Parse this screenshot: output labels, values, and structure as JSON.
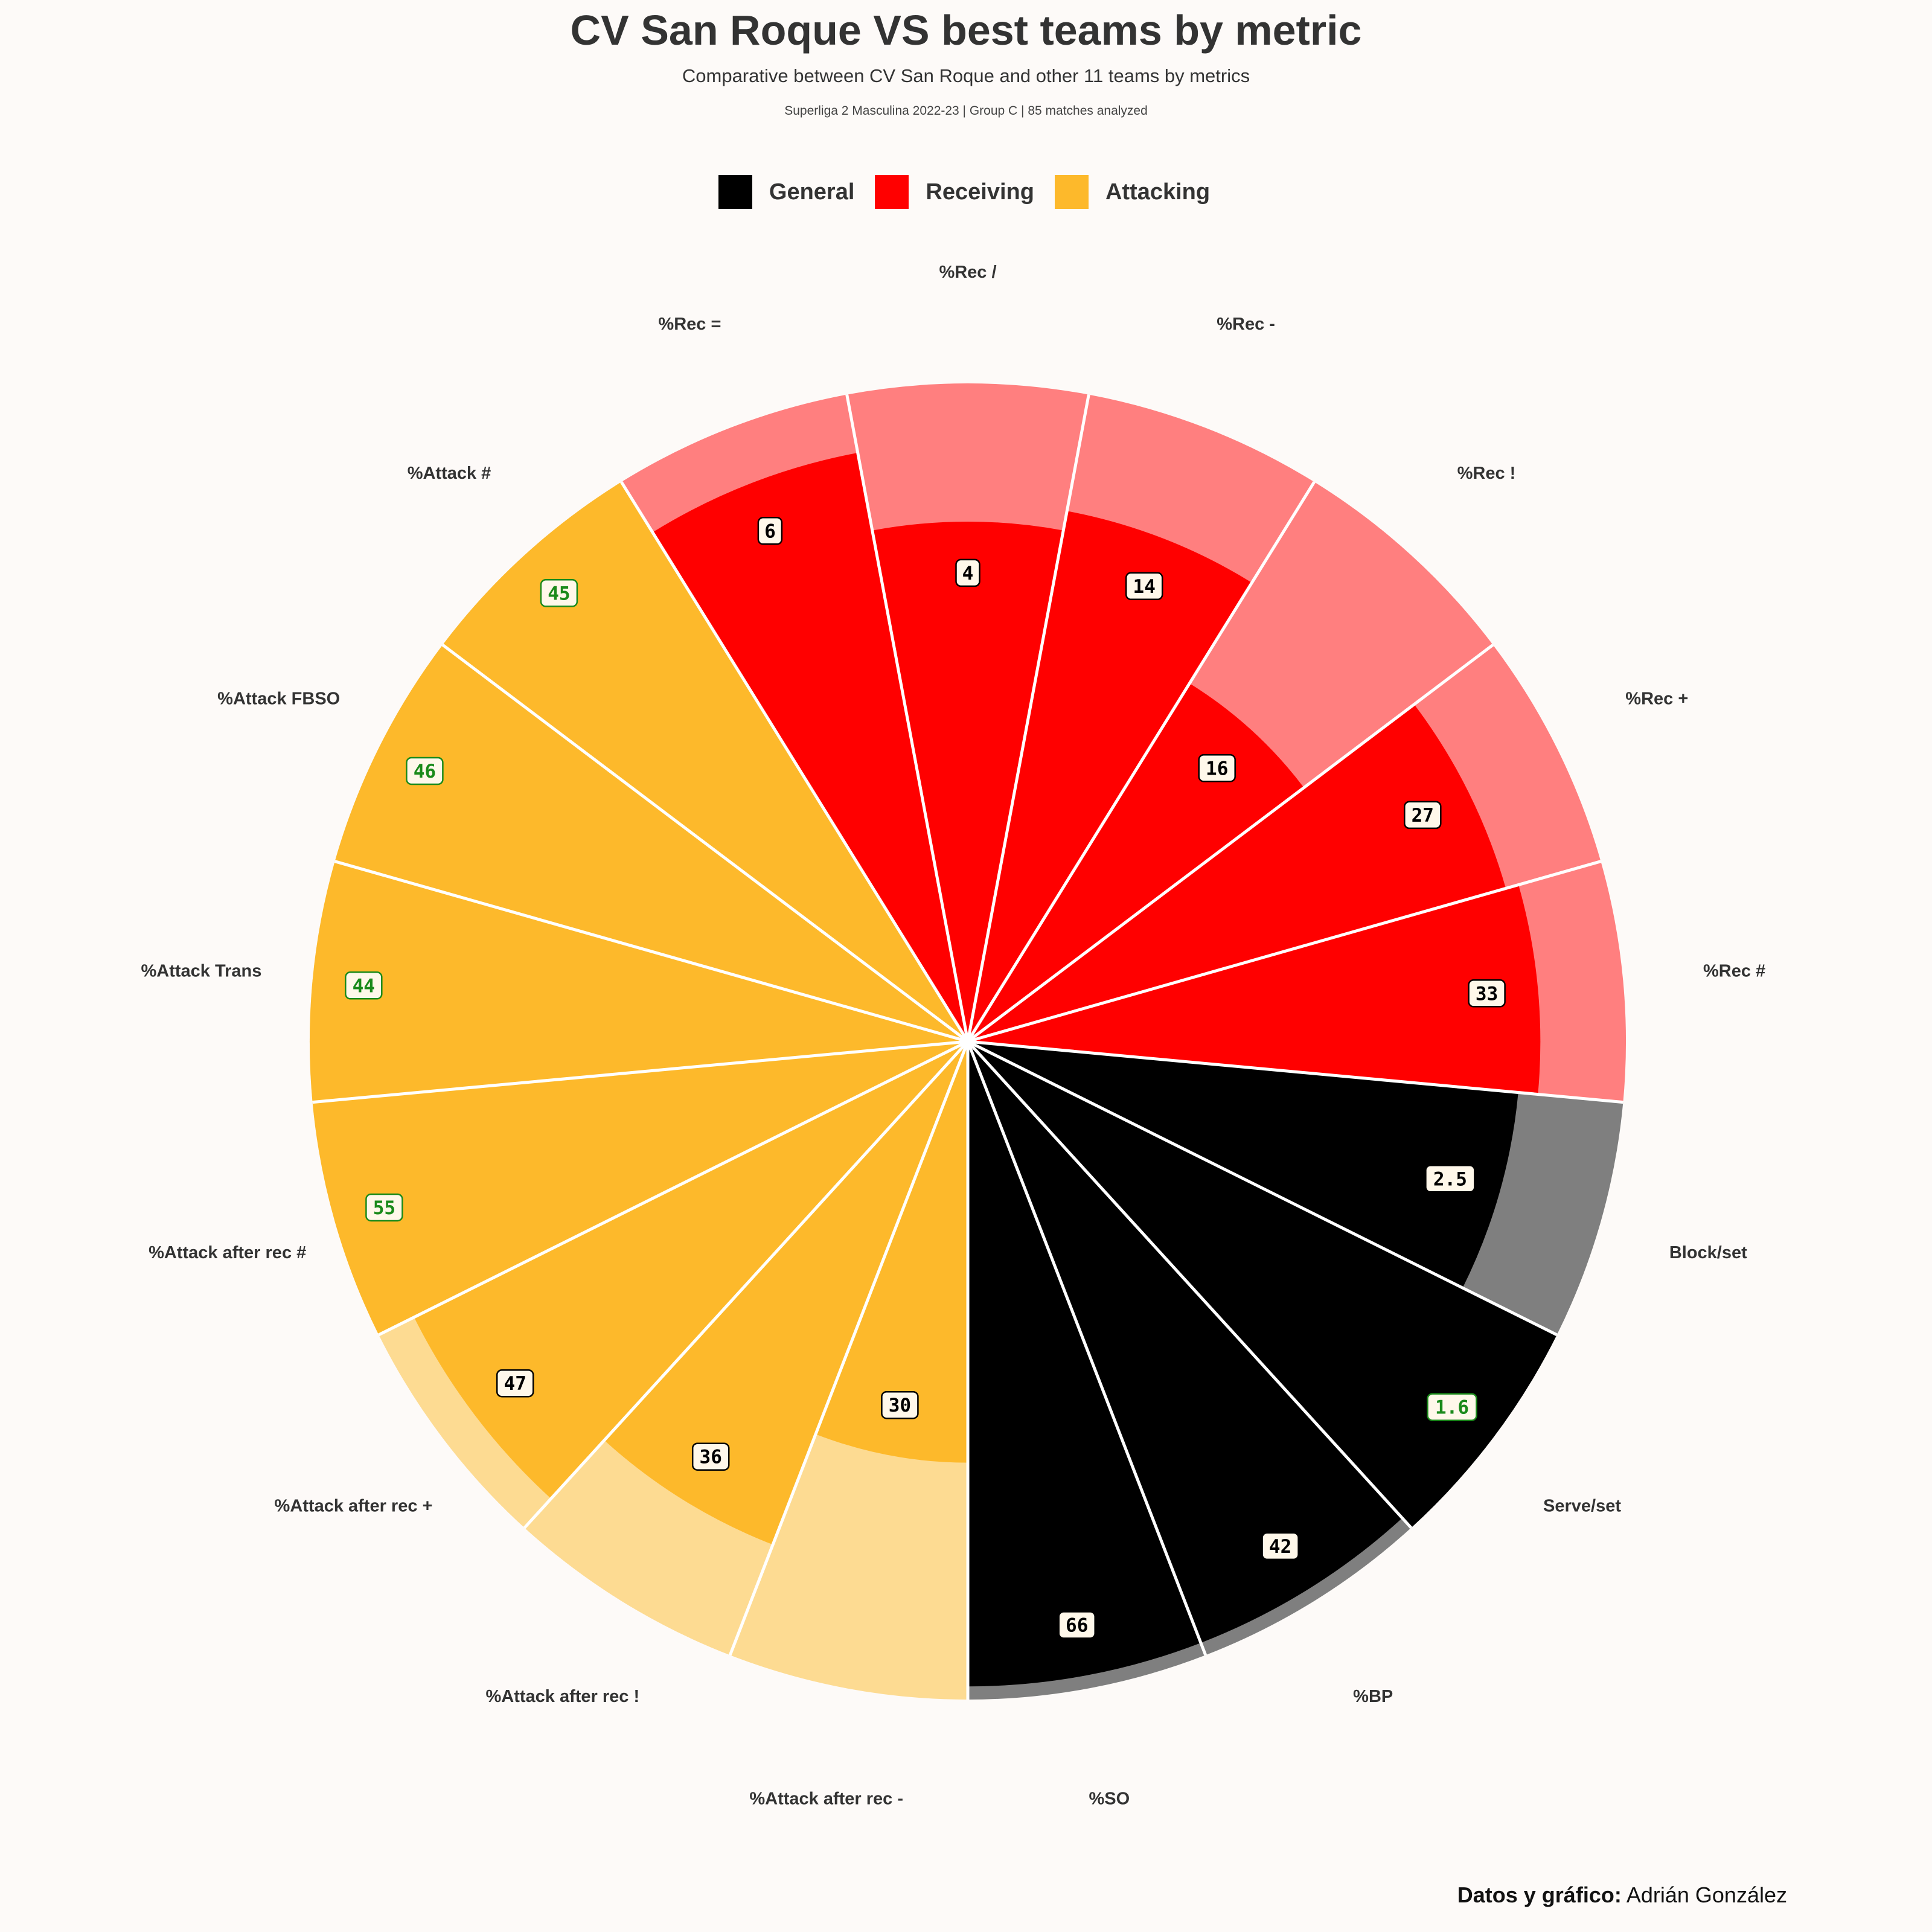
{
  "title": "CV San Roque VS best teams by metric",
  "subtitle": "Comparative between CV San Roque and other 11 teams by metrics",
  "caption": "Superliga 2 Masculina 2022-23 | Group C | 85 matches analyzed",
  "credit": {
    "label": "Datos y gráfico:",
    "name": "Adrián González"
  },
  "legend": [
    {
      "label": "General",
      "color": "#000000"
    },
    {
      "label": "Receiving",
      "color": "#ff0000"
    },
    {
      "label": "Attacking",
      "color": "#fdb92b"
    }
  ],
  "chart_data": {
    "type": "polar-bar",
    "value_scale": "percentile (0–100) relative to the other 11 teams",
    "highlight_color": "#1a8a1a",
    "group_colors": {
      "General": {
        "team": "#000000",
        "best": "#7f7f7f"
      },
      "Receiving": {
        "team": "#ff0000",
        "best": "#ff7f7f"
      },
      "Attacking": {
        "team": "#fdb92b",
        "best": "#fddb92"
      }
    },
    "bars": [
      {
        "metric": "%Attack after rec -",
        "group": "Attacking",
        "label": "30",
        "team": 64,
        "best": 100,
        "is_best": false
      },
      {
        "metric": "%Attack after rec !",
        "group": "Attacking",
        "label": "36",
        "team": 82,
        "best": 100,
        "is_best": false
      },
      {
        "metric": "%Attack after rec +",
        "group": "Attacking",
        "label": "47",
        "team": 94,
        "best": 100,
        "is_best": false
      },
      {
        "metric": "%Attack after rec #",
        "group": "Attacking",
        "label": "55",
        "team": 100,
        "best": 100,
        "is_best": true
      },
      {
        "metric": "%Attack Trans",
        "group": "Attacking",
        "label": "44",
        "team": 100,
        "best": 100,
        "is_best": true
      },
      {
        "metric": "%Attack FBSO",
        "group": "Attacking",
        "label": "46",
        "team": 100,
        "best": 100,
        "is_best": true
      },
      {
        "metric": "%Attack #",
        "group": "Attacking",
        "label": "45",
        "team": 100,
        "best": 100,
        "is_best": true
      },
      {
        "metric": "%Rec =",
        "group": "Receiving",
        "label": "6",
        "team": 91,
        "best": 100,
        "is_best": false
      },
      {
        "metric": "%Rec /",
        "group": "Receiving",
        "label": "4",
        "team": 79,
        "best": 100,
        "is_best": false
      },
      {
        "metric": "%Rec -",
        "group": "Receiving",
        "label": "14",
        "team": 82,
        "best": 100,
        "is_best": false
      },
      {
        "metric": "%Rec !",
        "group": "Receiving",
        "label": "16",
        "team": 64,
        "best": 100,
        "is_best": false
      },
      {
        "metric": "%Rec +",
        "group": "Receiving",
        "label": "27",
        "team": 85,
        "best": 100,
        "is_best": false
      },
      {
        "metric": "%Rec #",
        "group": "Receiving",
        "label": "33",
        "team": 87,
        "best": 100,
        "is_best": false
      },
      {
        "metric": "Block/set",
        "group": "General",
        "label": "2.5",
        "team": 84,
        "best": 100,
        "is_best": false
      },
      {
        "metric": "Serve/set",
        "group": "General",
        "label": "1.6",
        "team": 100,
        "best": 100,
        "is_best": true
      },
      {
        "metric": "%BP",
        "group": "General",
        "label": "42",
        "team": 98,
        "best": 100,
        "is_best": false
      },
      {
        "metric": "%SO",
        "group": "General",
        "label": "66",
        "team": 98,
        "best": 100,
        "is_best": false
      }
    ]
  }
}
